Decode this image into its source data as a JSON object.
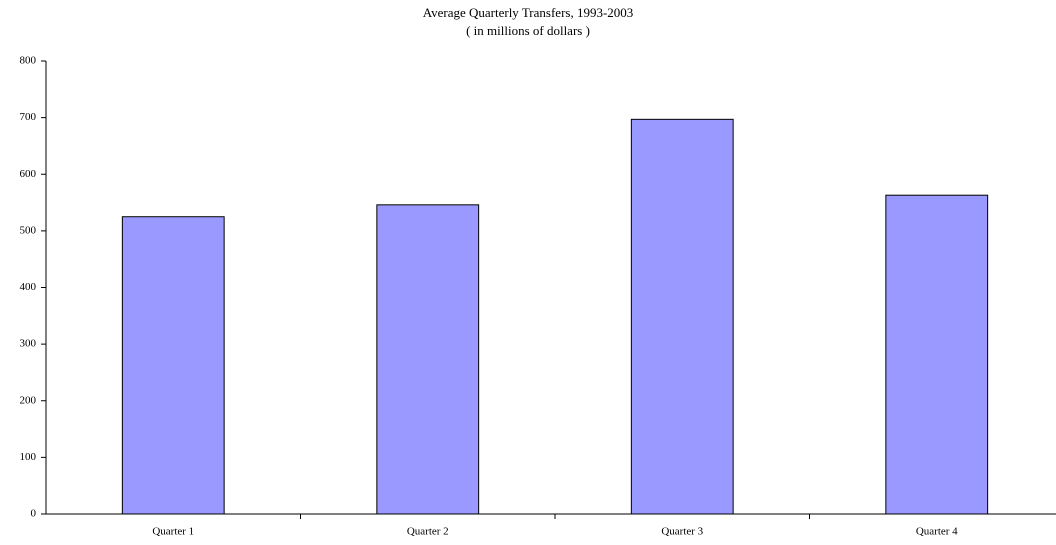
{
  "chart_data": {
    "type": "bar",
    "title": "Average Quarterly Transfers, 1993-2003",
    "subtitle": "( in millions of dollars )",
    "categories": [
      "Quarter 1",
      "Quarter 2",
      "Quarter 3",
      "Quarter 4"
    ],
    "values": [
      525,
      546,
      697,
      563
    ],
    "color": "#9999ff",
    "ylim": [
      0,
      800
    ],
    "yticks": [
      0,
      100,
      200,
      300,
      400,
      500,
      600,
      700,
      800
    ],
    "grid": false
  }
}
